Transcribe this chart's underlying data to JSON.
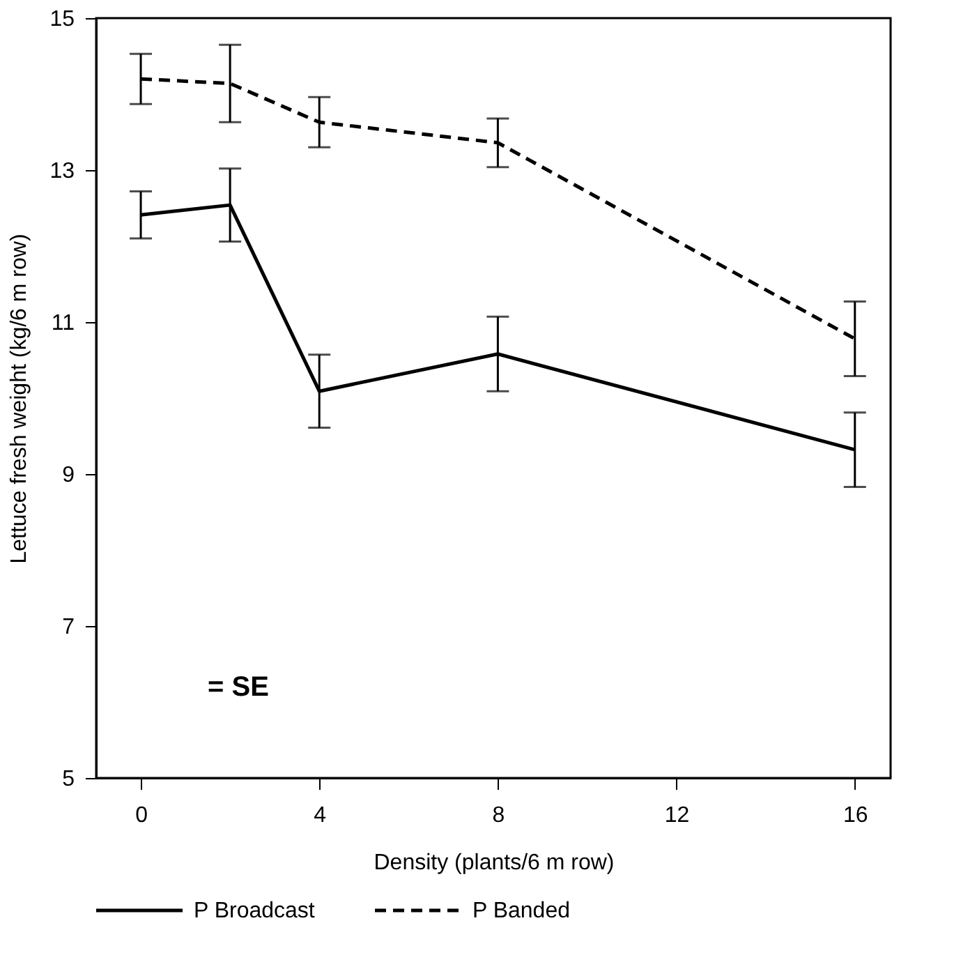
{
  "chart_data": {
    "type": "line",
    "xlabel": "Density (plants/6 m row)",
    "ylabel": "Lettuce fresh weight (kg/6 m row)",
    "x": [
      0,
      2,
      4,
      8,
      16
    ],
    "series": [
      {
        "name": "P Broadcast",
        "color": "#000000",
        "line_style": "solid",
        "values": [
          12.41,
          12.54,
          10.09,
          10.58,
          9.32
        ],
        "errors": [
          0.31,
          0.48,
          0.48,
          0.49,
          0.49
        ]
      },
      {
        "name": "P Banded",
        "color": "#000000",
        "line_style": "dashed",
        "values": [
          14.2,
          14.14,
          13.63,
          13.36,
          10.78
        ],
        "errors": [
          0.33,
          0.51,
          0.33,
          0.32,
          0.49
        ]
      }
    ],
    "xlim": [
      -1,
      16.8
    ],
    "ylim": [
      5,
      15
    ],
    "xticks": [
      0,
      4,
      8,
      12,
      16
    ],
    "yticks": [
      5,
      7,
      9,
      11,
      13,
      15
    ],
    "annotations": [
      "= SE"
    ],
    "legend": "bottom",
    "grid": false,
    "marker": "none"
  }
}
